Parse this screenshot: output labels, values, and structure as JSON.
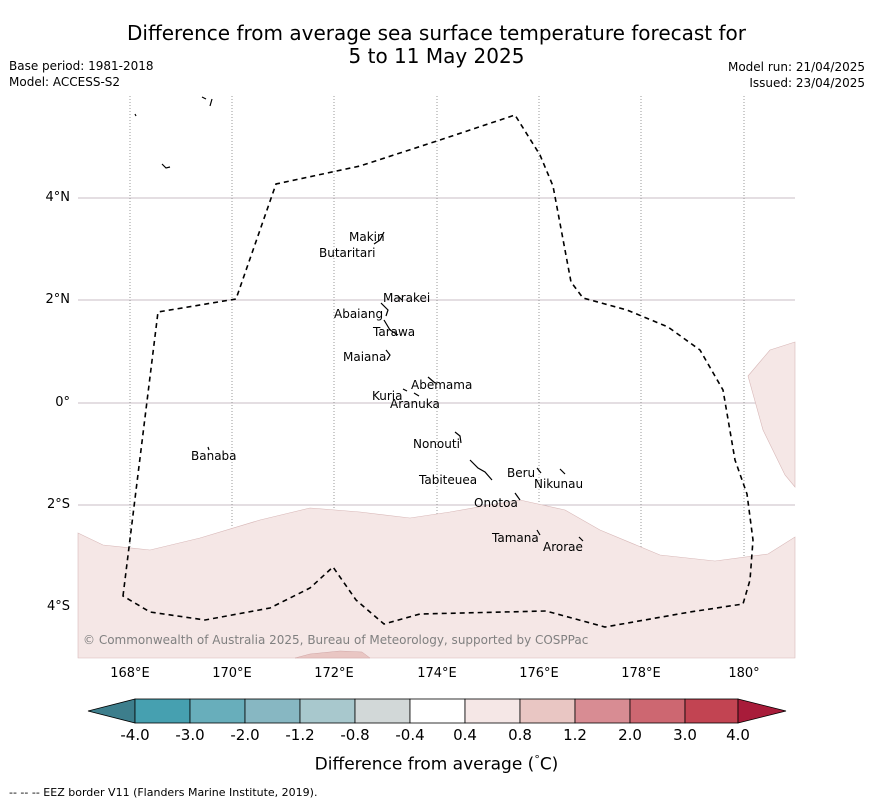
{
  "title_line1": "Difference from average sea surface temperature forecast for",
  "title_line2": "5 to 11 May 2025",
  "base_period": "Base period: 1981-2018",
  "model": "Model: ACCESS-S2",
  "model_run": "Model run: 21/04/2025",
  "issued": "Issued: 23/04/2025",
  "copyright": "© Commonwealth of Australia 2025, Bureau of Meteorology, supported by COSPPac",
  "lat_ticks": [
    "4°N",
    "2°N",
    "0°",
    "2°S",
    "4°S"
  ],
  "lon_ticks": [
    "168°E",
    "170°E",
    "172°E",
    "174°E",
    "176°E",
    "178°E",
    "180°"
  ],
  "islands": {
    "makin": "Makin",
    "butaritari": "Butaritari",
    "marakei": "Marakei",
    "abaiang": "Abaiang",
    "tarawa": "Tarawa",
    "maiana": "Maiana",
    "abemama": "Abemama",
    "kuria": "Kuria",
    "aranuka": "Aranuka",
    "nonouti": "Nonouti",
    "banaba": "Banaba",
    "beru": "Beru",
    "tabiteuea": "Tabiteuea",
    "nikunau": "Nikunau",
    "onotoa": "Onotoa",
    "tamana": "Tamana",
    "arorae": "Arorae"
  },
  "colorbar": {
    "labels": [
      "-4.0",
      "-3.0",
      "-2.0",
      "-1.2",
      "-0.8",
      "-0.4",
      "0.4",
      "0.8",
      "1.2",
      "2.0",
      "3.0",
      "4.0"
    ],
    "colors": [
      "#3d7e8c",
      "#46a0b0",
      "#68aebb",
      "#87b7c2",
      "#a8c8cd",
      "#d2d8d8",
      "#ffffff",
      "#f5e7e6",
      "#e9c6c3",
      "#d88c93",
      "#cd6771",
      "#c24452",
      "#a81c3a"
    ],
    "title": "Difference from average (",
    "unit_symbol": "°",
    "unit": "C)"
  },
  "footer": "--  --  -- EEZ border V11 (Flanders Marine Institute, 2019)."
}
